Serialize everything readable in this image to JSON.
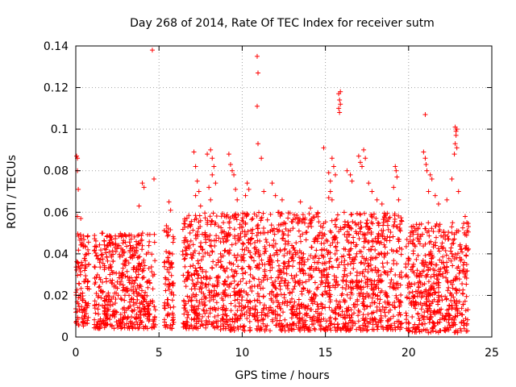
{
  "chart_data": {
    "type": "scatter",
    "title": "Day 268 of 2014, Rate Of TEC Index for receiver sutm",
    "xlabel": "GPS time / hours",
    "ylabel": "ROTI / TECUs",
    "xlim": [
      0,
      25
    ],
    "ylim": [
      0,
      0.14
    ],
    "x_ticks": [
      0,
      5,
      10,
      15,
      20,
      25
    ],
    "x_tick_labels": [
      "0",
      "5",
      "10",
      "15",
      "20",
      "25"
    ],
    "y_ticks": [
      0,
      0.02,
      0.04,
      0.06,
      0.08,
      0.1,
      0.12,
      0.14
    ],
    "y_tick_labels": [
      "0",
      "0.02",
      "0.04",
      "0.06",
      "0.08",
      "0.1",
      "0.12",
      "0.14"
    ],
    "grid": true,
    "marker": "plus",
    "color": "#ff0000",
    "dense_clusters": [
      {
        "x_range": [
          0.0,
          0.8
        ],
        "y_range": [
          0.005,
          0.05
        ]
      },
      {
        "x_range": [
          1.1,
          4.8
        ],
        "y_range": [
          0.004,
          0.05
        ]
      },
      {
        "x_range": [
          5.3,
          5.9
        ],
        "y_range": [
          0.004,
          0.055
        ]
      },
      {
        "x_range": [
          6.4,
          8.6
        ],
        "y_range": [
          0.004,
          0.06
        ]
      },
      {
        "x_range": [
          8.7,
          19.6
        ],
        "y_range": [
          0.003,
          0.06
        ]
      },
      {
        "x_range": [
          19.8,
          23.6
        ],
        "y_range": [
          0.002,
          0.055
        ]
      }
    ],
    "points": [
      {
        "x": 0.05,
        "y": 0.087
      },
      {
        "x": 0.1,
        "y": 0.086
      },
      {
        "x": 0.1,
        "y": 0.08
      },
      {
        "x": 0.15,
        "y": 0.071
      },
      {
        "x": 0.1,
        "y": 0.058
      },
      {
        "x": 0.3,
        "y": 0.057
      },
      {
        "x": 4.6,
        "y": 0.138
      },
      {
        "x": 4.7,
        "y": 0.076
      },
      {
        "x": 4.0,
        "y": 0.074
      },
      {
        "x": 4.1,
        "y": 0.072
      },
      {
        "x": 3.8,
        "y": 0.063
      },
      {
        "x": 5.6,
        "y": 0.065
      },
      {
        "x": 5.7,
        "y": 0.061
      },
      {
        "x": 7.1,
        "y": 0.089
      },
      {
        "x": 7.2,
        "y": 0.082
      },
      {
        "x": 7.3,
        "y": 0.075
      },
      {
        "x": 7.4,
        "y": 0.07
      },
      {
        "x": 7.2,
        "y": 0.068
      },
      {
        "x": 7.5,
        "y": 0.063
      },
      {
        "x": 7.9,
        "y": 0.088
      },
      {
        "x": 8.1,
        "y": 0.09
      },
      {
        "x": 8.2,
        "y": 0.086
      },
      {
        "x": 8.3,
        "y": 0.082
      },
      {
        "x": 8.2,
        "y": 0.078
      },
      {
        "x": 8.0,
        "y": 0.072
      },
      {
        "x": 8.4,
        "y": 0.074
      },
      {
        "x": 8.1,
        "y": 0.066
      },
      {
        "x": 9.2,
        "y": 0.088
      },
      {
        "x": 9.3,
        "y": 0.083
      },
      {
        "x": 9.4,
        "y": 0.08
      },
      {
        "x": 9.5,
        "y": 0.078
      },
      {
        "x": 9.6,
        "y": 0.071
      },
      {
        "x": 9.7,
        "y": 0.066
      },
      {
        "x": 10.3,
        "y": 0.074
      },
      {
        "x": 10.4,
        "y": 0.071
      },
      {
        "x": 10.2,
        "y": 0.068
      },
      {
        "x": 10.9,
        "y": 0.135
      },
      {
        "x": 10.95,
        "y": 0.127
      },
      {
        "x": 10.9,
        "y": 0.111
      },
      {
        "x": 10.95,
        "y": 0.093
      },
      {
        "x": 11.15,
        "y": 0.086
      },
      {
        "x": 11.3,
        "y": 0.07
      },
      {
        "x": 11.8,
        "y": 0.074
      },
      {
        "x": 12.0,
        "y": 0.068
      },
      {
        "x": 12.4,
        "y": 0.066
      },
      {
        "x": 13.5,
        "y": 0.065
      },
      {
        "x": 14.1,
        "y": 0.062
      },
      {
        "x": 14.9,
        "y": 0.091
      },
      {
        "x": 15.2,
        "y": 0.079
      },
      {
        "x": 15.3,
        "y": 0.075
      },
      {
        "x": 15.4,
        "y": 0.086
      },
      {
        "x": 15.5,
        "y": 0.082
      },
      {
        "x": 15.6,
        "y": 0.078
      },
      {
        "x": 15.3,
        "y": 0.07
      },
      {
        "x": 15.2,
        "y": 0.067
      },
      {
        "x": 15.4,
        "y": 0.066
      },
      {
        "x": 15.8,
        "y": 0.117
      },
      {
        "x": 15.85,
        "y": 0.114
      },
      {
        "x": 15.9,
        "y": 0.112
      },
      {
        "x": 15.8,
        "y": 0.11
      },
      {
        "x": 15.9,
        "y": 0.118
      },
      {
        "x": 15.85,
        "y": 0.108
      },
      {
        "x": 16.3,
        "y": 0.08
      },
      {
        "x": 16.5,
        "y": 0.078
      },
      {
        "x": 16.6,
        "y": 0.075
      },
      {
        "x": 17.0,
        "y": 0.087
      },
      {
        "x": 17.1,
        "y": 0.084
      },
      {
        "x": 17.2,
        "y": 0.082
      },
      {
        "x": 17.3,
        "y": 0.09
      },
      {
        "x": 17.4,
        "y": 0.086
      },
      {
        "x": 17.6,
        "y": 0.074
      },
      {
        "x": 17.8,
        "y": 0.07
      },
      {
        "x": 18.1,
        "y": 0.066
      },
      {
        "x": 18.4,
        "y": 0.064
      },
      {
        "x": 19.2,
        "y": 0.082
      },
      {
        "x": 19.25,
        "y": 0.08
      },
      {
        "x": 19.3,
        "y": 0.077
      },
      {
        "x": 19.1,
        "y": 0.072
      },
      {
        "x": 19.4,
        "y": 0.066
      },
      {
        "x": 21.0,
        "y": 0.107
      },
      {
        "x": 20.9,
        "y": 0.089
      },
      {
        "x": 21.0,
        "y": 0.086
      },
      {
        "x": 21.05,
        "y": 0.083
      },
      {
        "x": 21.1,
        "y": 0.08
      },
      {
        "x": 21.3,
        "y": 0.078
      },
      {
        "x": 21.4,
        "y": 0.076
      },
      {
        "x": 21.2,
        "y": 0.07
      },
      {
        "x": 21.6,
        "y": 0.068
      },
      {
        "x": 21.8,
        "y": 0.064
      },
      {
        "x": 22.3,
        "y": 0.066
      },
      {
        "x": 22.8,
        "y": 0.101
      },
      {
        "x": 22.85,
        "y": 0.099
      },
      {
        "x": 22.9,
        "y": 0.1
      },
      {
        "x": 22.85,
        "y": 0.097
      },
      {
        "x": 22.8,
        "y": 0.093
      },
      {
        "x": 22.9,
        "y": 0.091
      },
      {
        "x": 22.75,
        "y": 0.088
      },
      {
        "x": 22.6,
        "y": 0.076
      },
      {
        "x": 23.0,
        "y": 0.07
      },
      {
        "x": 23.4,
        "y": 0.058
      },
      {
        "x": 23.5,
        "y": 0.055
      }
    ]
  }
}
